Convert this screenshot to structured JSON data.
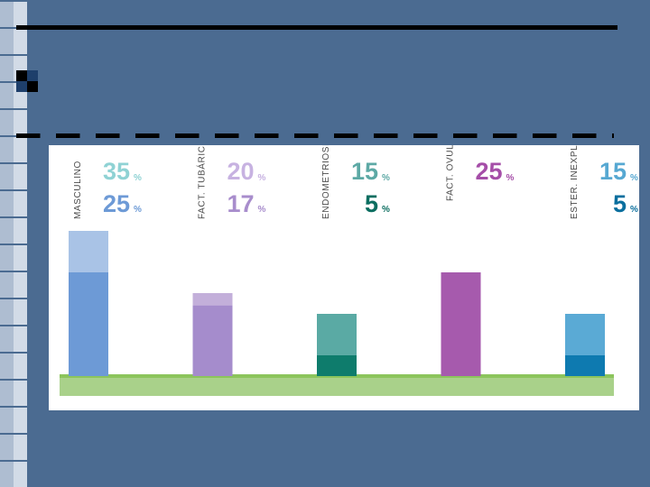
{
  "colors": {
    "background": "#4b6b91",
    "ground": "#a9d18a",
    "ground_line": "#8cc55c"
  },
  "icons": [
    "checker-bullet-icon"
  ],
  "chart_data": {
    "type": "bar",
    "categories": [
      "MASCULINO",
      "FACT. TUBÁRICO",
      "ENDOMETRIOSIS",
      "FACT. OVULATORIO",
      "ESTER. INEXPLICADA"
    ],
    "series": [
      {
        "values": [
          35,
          20,
          15,
          25,
          15
        ]
      },
      {
        "values": [
          25,
          17,
          5,
          null,
          5
        ]
      }
    ],
    "unit": "%",
    "colors_top": [
      "#a9c3e6",
      "#c3afda",
      "#5aaaa4",
      "#a65aad",
      "#5aaad5"
    ],
    "colors_bottom": [
      "#6d9ad6",
      "#a58ccc",
      "#0e7c6c",
      "#a65aad",
      "#0e7ab0"
    ],
    "text_colors_top": [
      "#8fd2d4",
      "#c7b2e1",
      "#5da9a5",
      "#a54ea8",
      "#56a8d2"
    ],
    "text_colors_bottom": [
      "#6d9ad6",
      "#a88dcc",
      "#0c6e60",
      "#a54ea8",
      "#0b6f9e"
    ],
    "ylim": [
      0,
      35
    ],
    "grid": false,
    "legend": "none"
  }
}
